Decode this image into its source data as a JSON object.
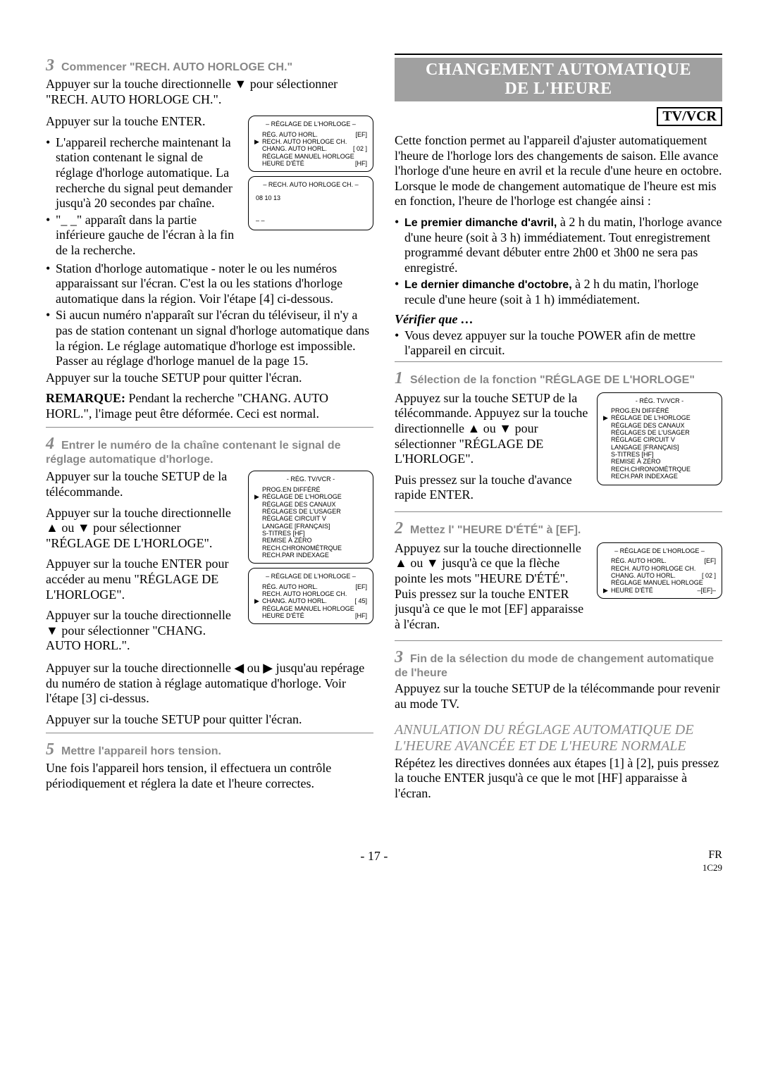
{
  "left": {
    "step3": {
      "num": "3",
      "label": "Commencer \"RECH. AUTO HORLOGE CH.\"",
      "p1": "Appuyer sur la touche directionnelle ▼ pour sélectionner \"RECH. AUTO HORLOGE CH.\".",
      "p2": "Appuyer sur la touche ENTER.",
      "b1": "L'appareil recherche maintenant la station contenant le signal de réglage d'horloge automatique. La recherche du signal peut demander jusqu'à 20 secondes par chaîne.",
      "b2": "\"_ _\" apparaît dans la partie inférieure gauche de l'écran à la fin de la recherche.",
      "b3": "Station d'horloge automatique - noter le ou les numéros apparaissant sur l'écran. C'est la ou les stations d'horloge automatique dans la région. Voir l'étape [4] ci-dessous.",
      "b4": "Si aucun numéro n'apparaît sur l'écran du téléviseur, il n'y a pas de station contenant un signal d'horloge automatique dans la région. Le réglage automatique d'horloge est impossible. Passer au réglage d'horloge manuel de la page 15.",
      "p3": "Appuyer sur la touche SETUP pour quitter l'écran.",
      "remarque_label": "REMARQUE:",
      "remarque": " Pendant la recherche \"CHANG. AUTO HORL.\", l'image peut être déformée. Ceci est normal."
    },
    "osd_horloge": {
      "title": "– RÉGLAGE DE L'HORLOGE –",
      "rows": [
        {
          "arrow": "",
          "l": "RÉG. AUTO HORL.",
          "r": "[EF]"
        },
        {
          "arrow": "▶",
          "l": "RECH. AUTO HORLOGE CH.",
          "r": ""
        },
        {
          "arrow": "",
          "l": "CHANG. AUTO HORL.",
          "r": "[ 02 ]"
        },
        {
          "arrow": "",
          "l": "RÉGLAGE MANUEL HORLOGE",
          "r": ""
        },
        {
          "arrow": "",
          "l": "HEURE D'ÉTÉ",
          "r": "[HF]"
        }
      ]
    },
    "osd_rech": {
      "title": "– RECH. AUTO HORLOGE CH. –",
      "line1": "08    10    13",
      "line2": "– –"
    },
    "step4": {
      "num": "4",
      "label": "Entrer le numéro de la chaîne contenant le signal de réglage automatique d'horloge.",
      "p1": "Appuyer sur la touche SETUP de la télécommande.",
      "p2": "Appuyer sur la touche directionnelle ▲ ou ▼ pour sélectionner \"RÉGLAGE DE L'HORLOGE\".",
      "p3": "Appuyer sur la touche ENTER pour accéder au menu \"RÉGLAGE DE L'HORLOGE\".",
      "p4": "Appuyer sur la touche directionnelle ▼ pour sélectionner \"CHANG. AUTO HORL.\".",
      "p5": "Appuyer sur la touche directionnelle ◀ ou ▶ jusqu'au repérage du numéro de station à réglage automatique d'horloge. Voir l'étape [3] ci-dessus.",
      "p6": "Appuyer sur la touche SETUP pour quitter l'écran."
    },
    "osd_tvvcr": {
      "title": "- RÉG. TV/VCR -",
      "rows": [
        "PROG.EN DIFFÉRÉ",
        "RÉGLAGE DE L'HORLOGE",
        "RÉGLAGE DES CANAUX",
        "RÉGLAGES DE L'USAGER",
        "RÉGLAGE CIRCUIT V",
        "LANGAGE [FRANÇAIS]",
        "S-TITRES [HF]",
        "REMISE À ZÉRO",
        "RECH.CHRONOMÉTRQUE",
        "RECH.PAR INDEXAGE"
      ],
      "arrow_index": 1
    },
    "osd_horloge2": {
      "title": "– RÉGLAGE DE L'HORLOGE –",
      "rows": [
        {
          "arrow": "",
          "l": "RÉG. AUTO HORL.",
          "r": "[EF]"
        },
        {
          "arrow": "",
          "l": "RECH. AUTO HORLOGE CH.",
          "r": ""
        },
        {
          "arrow": "▶",
          "l": "CHANG. AUTO HORL.",
          "r": "[ 45]"
        },
        {
          "arrow": "",
          "l": "RÉGLAGE MANUEL HORLOGE",
          "r": ""
        },
        {
          "arrow": "",
          "l": "HEURE D'ÉTÉ",
          "r": "[HF]"
        }
      ]
    },
    "step5": {
      "num": "5",
      "label": "Mettre l'appareil hors tension.",
      "p1": "Une fois l'appareil hors tension, il effectuera un contrôle périodiquement et réglera la date et l'heure correctes."
    }
  },
  "right": {
    "title_line1": "CHANGEMENT AUTOMATIQUE",
    "title_line2": "DE L'HEURE",
    "tvvcr": "TV/VCR",
    "intro": "Cette fonction permet au l'appareil d'ajuster automatiquement l'heure de l'horloge lors des changements de saison. Elle avance l'horloge d'une heure en avril et la recule d'une heure en octobre. Lorsque le mode de changement automatique de l'heure est mis en fonction, l'heure de l'horloge est changée ainsi :",
    "b1_bold": "Le premier dimanche d'avril,",
    "b1_rest": " à 2 h du matin, l'horloge avance d'une heure (soit à 3 h) immédiatement. Tout enregistrement programmé devant débuter entre 2h00 et 3h00 ne sera pas enregistré.",
    "b2_bold": "Le dernier dimanche d'octobre,",
    "b2_rest": " à 2 h du matin, l'horloge recule d'une heure (soit à 1 h) immédiatement.",
    "verifier": "Vérifier que …",
    "b3": "Vous devez appuyer sur la touche POWER afin de mettre l'appareil en circuit.",
    "step1": {
      "num": "1",
      "label": "Sélection de la fonction \"RÉGLAGE DE L'HORLOGE\"",
      "p1": "Appuyez sur la touche SETUP de la télécommande. Appuyez sur la touche directionnelle ▲ ou ▼ pour sélectionner \"RÉGLAGE DE L'HORLOGE\".",
      "p2": "Puis pressez sur la touche d'avance rapide ENTER."
    },
    "osd_tvvcr_r": {
      "title": "- RÉG. TV/VCR -",
      "rows": [
        "PROG.EN DIFFÉRÉ",
        "RÉGLAGE DE L'HORLOGE",
        "RÉGLAGE DES CANAUX",
        "RÉGLAGES DE L'USAGER",
        "RÉGLAGE CIRCUIT V",
        "LANGAGE [FRANÇAIS]",
        "S-TITRES [HF]",
        "REMISE À ZÉRO",
        "RECH.CHRONOMÉTRQUE",
        "RECH.PAR INDEXAGE"
      ],
      "arrow_index": 1
    },
    "step2": {
      "num": "2",
      "label": "Mettez l' \"HEURE D'ÉTÉ\" à [EF].",
      "p1": "Appuyez sur la touche directionnelle ▲ ou ▼ jusqu'à ce que la flèche pointe les mots \"HEURE D'ÉTÉ\". Puis pressez sur la touche ENTER jusqu'à ce que le mot [EF] apparaisse à l'écran."
    },
    "osd_horloge_r": {
      "title": "– RÉGLAGE DE L'HORLOGE –",
      "rows": [
        {
          "arrow": "",
          "l": "RÉG. AUTO HORL.",
          "r": "[EF]"
        },
        {
          "arrow": "",
          "l": "RECH. AUTO HORLOGE CH.",
          "r": ""
        },
        {
          "arrow": "",
          "l": "CHANG. AUTO HORL.",
          "r": "[ 02 ]"
        },
        {
          "arrow": "",
          "l": "RÉGLAGE MANUEL HORLOGE",
          "r": ""
        },
        {
          "arrow": "▶",
          "l": "HEURE D'ÉTÉ",
          "r": "–[EF]–"
        }
      ]
    },
    "step3": {
      "num": "3",
      "label": "Fin de la sélection du mode de changement automatique de l'heure",
      "p1": "Appuyez sur la touche SETUP de la télécommande pour revenir au mode TV."
    },
    "annul_title": "ANNULATION DU RÉGLAGE AUTOMATIQUE DE L'HEURE AVANCÉE ET DE L'HEURE NORMALE",
    "annul_p": "Répétez les directives données aux étapes [1] à [2], puis pressez la touche ENTER jusqu'à ce que le mot [HF] apparaisse à l'écran."
  },
  "footer": {
    "page": "- 17 -",
    "fr": "FR",
    "code": "1C29"
  }
}
